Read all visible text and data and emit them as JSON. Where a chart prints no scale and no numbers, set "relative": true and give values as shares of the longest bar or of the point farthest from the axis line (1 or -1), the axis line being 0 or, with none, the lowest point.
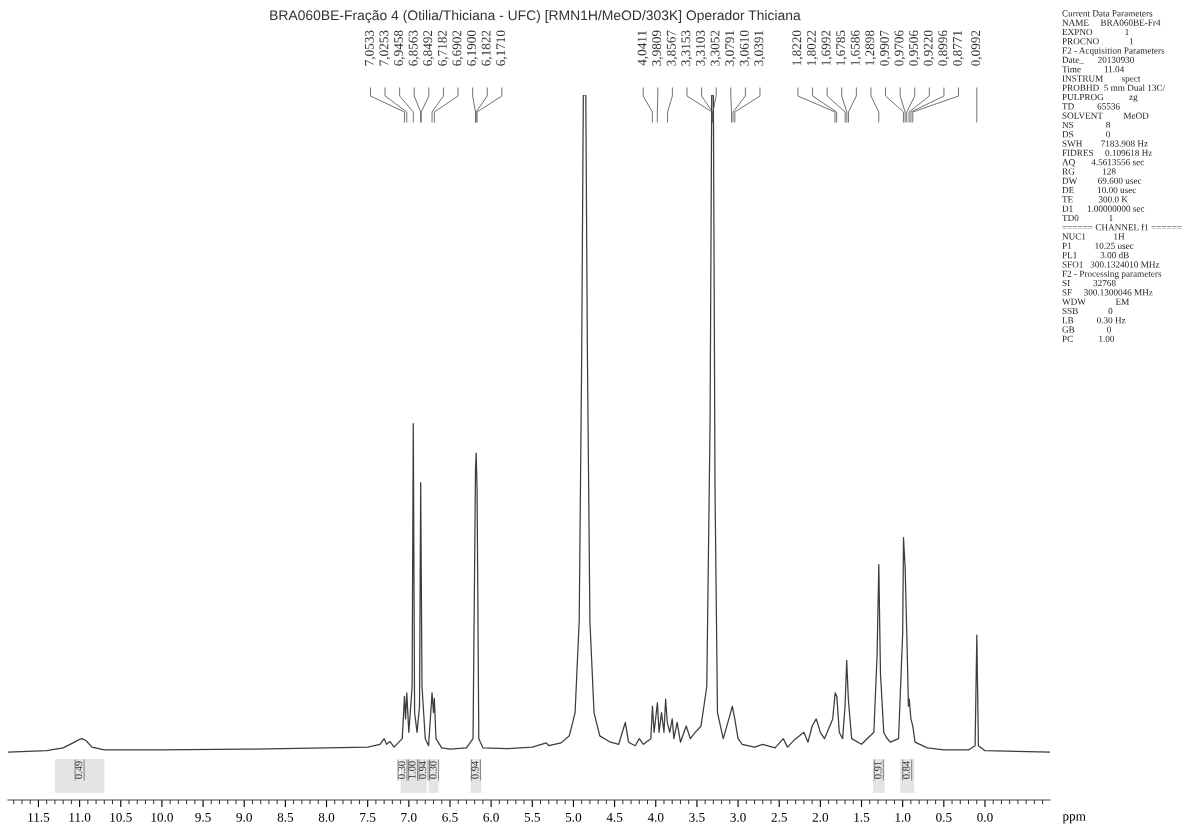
{
  "chart_data": {
    "type": "line",
    "relative": true,
    "title": "BRA060BE-Fração 4 (Otilia/Thiciana - UFC) [RMN1H/MeOD/303K] Operador Thiciana",
    "xlabel": "ppm",
    "xlim": [
      11.87,
      -0.79
    ],
    "xticks": [
      11.5,
      {
        "value": 11,
        "label": "11.0"
      },
      10.5,
      {
        "value": 10,
        "label": "10.0"
      },
      9.5,
      {
        "value": 9,
        "label": "9.0"
      },
      8.5,
      {
        "value": 8,
        "label": "8.0"
      },
      7.5,
      {
        "value": 7,
        "label": "7.0"
      },
      6.5,
      {
        "value": 6,
        "label": "6.0"
      },
      5.5,
      {
        "value": 5,
        "label": "5.0"
      },
      4.5,
      {
        "value": 4,
        "label": "4.0"
      },
      3.5,
      {
        "value": 3,
        "label": "3.0"
      },
      2.5,
      {
        "value": 2,
        "label": "2.0"
      },
      1.5,
      {
        "value": 1,
        "label": "1.0"
      },
      0.5,
      {
        "value": 0,
        "label": "0.0"
      }
    ],
    "x": [
      11.87,
      11.4,
      11.2,
      11.08,
      11.0,
      10.97,
      10.92,
      10.85,
      10.7,
      10.0,
      9.0,
      8.0,
      7.5,
      7.35,
      7.3,
      7.27,
      7.23,
      7.18,
      7.08,
      7.053,
      7.04,
      7.025,
      7.0,
      6.96,
      6.946,
      6.93,
      6.9,
      6.87,
      6.856,
      6.84,
      6.8,
      6.76,
      6.718,
      6.7,
      6.69,
      6.67,
      6.6,
      6.5,
      6.3,
      6.22,
      6.19,
      6.182,
      6.171,
      6.15,
      6.1,
      5.8,
      5.5,
      5.33,
      5.3,
      5.15,
      5.05,
      4.98,
      4.93,
      4.9,
      4.88,
      4.85,
      4.83,
      4.8,
      4.75,
      4.68,
      4.55,
      4.45,
      4.37,
      4.33,
      4.25,
      4.2,
      4.15,
      4.06,
      4.04,
      4.02,
      3.98,
      3.96,
      3.93,
      3.9,
      3.88,
      3.86,
      3.83,
      3.8,
      3.78,
      3.74,
      3.7,
      3.63,
      3.58,
      3.52,
      3.45,
      3.38,
      3.34,
      3.32,
      3.3,
      3.28,
      3.25,
      3.18,
      3.09,
      3.07,
      3.04,
      3.0,
      2.95,
      2.8,
      2.7,
      2.55,
      2.45,
      2.4,
      2.3,
      2.2,
      2.15,
      2.1,
      2.05,
      2.0,
      1.95,
      1.85,
      1.82,
      1.8,
      1.77,
      1.73,
      1.7,
      1.68,
      1.66,
      1.62,
      1.5,
      1.35,
      1.31,
      1.29,
      1.27,
      1.23,
      1.2,
      1.15,
      1.05,
      1.0,
      0.99,
      0.97,
      0.95,
      0.93,
      0.92,
      0.9,
      0.877,
      0.85,
      0.7,
      0.5,
      0.2,
      0.12,
      0.099,
      0.08,
      0.0,
      -0.79
    ],
    "series": [
      {
        "color": "#3c3c3c",
        "values": [
          0.068,
          0.07,
          0.074,
          0.081,
          0.086,
          0.087,
          0.084,
          0.075,
          0.071,
          0.071,
          0.072,
          0.074,
          0.075,
          0.079,
          0.087,
          0.079,
          0.083,
          0.075,
          0.087,
          0.147,
          0.115,
          0.152,
          0.096,
          0.161,
          0.534,
          0.124,
          0.096,
          0.133,
          0.45,
          0.161,
          0.087,
          0.077,
          0.152,
          0.124,
          0.144,
          0.087,
          0.074,
          0.072,
          0.074,
          0.087,
          0.469,
          0.492,
          0.441,
          0.087,
          0.074,
          0.073,
          0.075,
          0.081,
          0.077,
          0.081,
          0.091,
          0.124,
          0.254,
          0.627,
          1.0,
          1.0,
          0.627,
          0.254,
          0.124,
          0.091,
          0.082,
          0.079,
          0.11,
          0.082,
          0.077,
          0.087,
          0.079,
          0.087,
          0.133,
          0.096,
          0.138,
          0.096,
          0.124,
          0.096,
          0.143,
          0.11,
          0.096,
          0.115,
          0.087,
          0.11,
          0.082,
          0.105,
          0.087,
          0.096,
          0.105,
          0.161,
          0.534,
          1.0,
          1.0,
          0.441,
          0.124,
          0.087,
          0.124,
          0.133,
          0.115,
          0.087,
          0.079,
          0.075,
          0.079,
          0.074,
          0.087,
          0.075,
          0.087,
          0.096,
          0.082,
          0.105,
          0.115,
          0.096,
          0.087,
          0.115,
          0.152,
          0.147,
          0.096,
          0.087,
          0.133,
          0.198,
          0.143,
          0.087,
          0.079,
          0.096,
          0.208,
          0.334,
          0.18,
          0.096,
          0.089,
          0.082,
          0.087,
          0.236,
          0.372,
          0.329,
          0.236,
          0.133,
          0.143,
          0.115,
          0.105,
          0.082,
          0.074,
          0.071,
          0.071,
          0.077,
          0.234,
          0.077,
          0.07,
          0.068
        ]
      }
    ],
    "bands": [
      {
        "axis": "x",
        "from": 11.3,
        "to": 10.7,
        "label": "0.49",
        "color": "#e4e4e4"
      },
      {
        "axis": "x",
        "from": 7.1,
        "to": 7.0,
        "label": "0.30",
        "color": "#e4e4e4"
      },
      {
        "axis": "x",
        "from": 7.0,
        "to": 6.9,
        "label": "1.00",
        "color": "#e4e4e4"
      },
      {
        "axis": "x",
        "from": 6.9,
        "to": 6.78,
        "label": "0.94",
        "color": "#e4e4e4"
      },
      {
        "axis": "x",
        "from": 6.76,
        "to": 6.64,
        "label": "0.30",
        "color": "#e4e4e4"
      },
      {
        "axis": "x",
        "from": 6.25,
        "to": 6.12,
        "label": "0.94",
        "color": "#e4e4e4"
      },
      {
        "axis": "x",
        "from": 1.36,
        "to": 1.22,
        "label": "0.91",
        "color": "#e4e4e4"
      },
      {
        "axis": "x",
        "from": 1.03,
        "to": 0.86,
        "label": "0.84",
        "color": "#e4e4e4"
      }
    ],
    "annotations": [
      "7,0533",
      "7,0253",
      "6,9458",
      "6,8563",
      "6,8492",
      "6,7182",
      "6,6902",
      "6,1900",
      "6,1822",
      "6,1710",
      "4,0411",
      "3,9809",
      "3,8567",
      "3,3153",
      "3,3103",
      "3,3052",
      "3,0791",
      "3,0610",
      "3,0391",
      "1,8220",
      "1,8022",
      "1,6992",
      "1,6785",
      "1,6586",
      "1,2898",
      "0,9907",
      "0,9706",
      "0,9506",
      "0,9220",
      "0,8996",
      "0,8771",
      "0,0992",
      "Current Data Parameters",
      "NAME     BRA060BE-Fr4",
      "EXPNO              1",
      "PROCNO             1",
      "F2 - Acquisition Parameters",
      "Date_      20130930",
      "Time          11.04",
      "INSTRUM        spect",
      "PROBHD  5 mm Dual 13C/",
      "PULPROG           zg",
      "TD          65536",
      "SOLVENT         MeOD",
      "NS              8",
      "DS              0",
      "SWH        7183.908 Hz",
      "FIDRES     0.109618 Hz",
      "AQ       4.5613556 sec",
      "RG            128",
      "DW         69.600 usec",
      "DE          10.00 usec",
      "TE           300.0 K",
      "D1      1.00000000 sec",
      "TD0             1",
      "====== CHANNEL f1 ======",
      "NUC1            1H",
      "P1          10.25 usec",
      "PL1          3.00 dB",
      "SFO1   300.1324010 MHz",
      "F2 - Processing parameters",
      "SI          32768",
      "SF     300.1300046 MHz",
      "WDW             EM",
      "SSB             0",
      "LB          0.30 Hz",
      "GB              0",
      "PC           1.00"
    ]
  }
}
